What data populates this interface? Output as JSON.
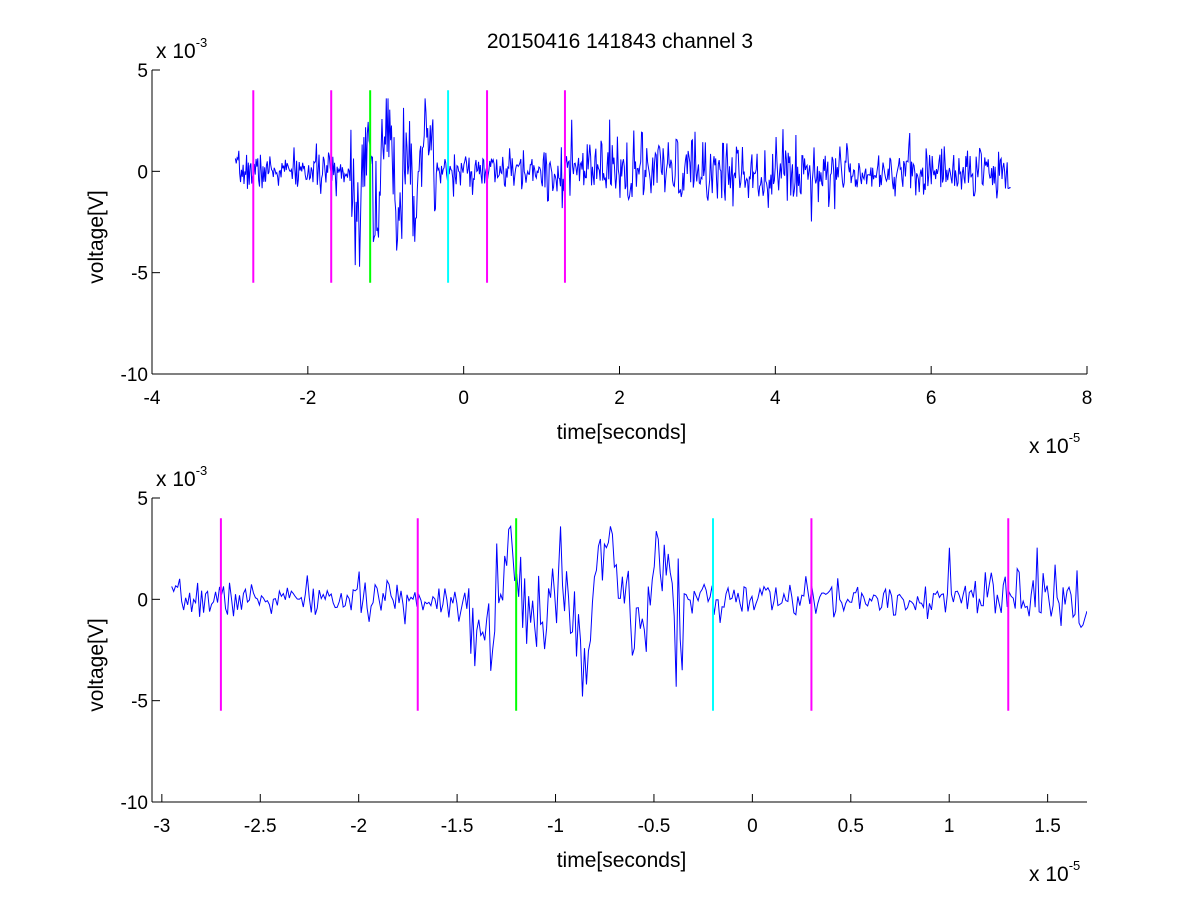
{
  "title": "20150416 141843 channel 3",
  "colors": {
    "signal": "#0000ff",
    "marker_magenta": "#ff00ff",
    "marker_green": "#00ff00",
    "marker_cyan": "#00ffff",
    "axes": "#000000",
    "background": "#ffffff"
  },
  "chart_data": [
    {
      "type": "line",
      "name": "top-plot",
      "xlabel": "time[seconds]",
      "ylabel": "voltage[V]",
      "x_exponent": {
        "base": "x 10",
        "power": "-5"
      },
      "y_exponent": {
        "base": "x 10",
        "power": "-3"
      },
      "xlim": [
        -4,
        8
      ],
      "ylim": [
        -10,
        5
      ],
      "xticks": [
        -4,
        -2,
        0,
        2,
        4,
        6,
        8
      ],
      "xtick_labels": [
        "-4",
        "-2",
        "0",
        "2",
        "4",
        "6",
        "8"
      ],
      "yticks": [
        -10,
        -5,
        0,
        5
      ],
      "ytick_labels": [
        "-10",
        "-5",
        "0",
        "5"
      ],
      "grid": false,
      "signal": {
        "x_range": [
          -2.93,
          7.02
        ],
        "num_points": 900,
        "seed": 7
      },
      "markers": [
        {
          "x": -2.7,
          "ymin": -5.5,
          "ymax": 4.0,
          "color": "magenta"
        },
        {
          "x": -1.7,
          "ymin": -5.5,
          "ymax": 4.0,
          "color": "magenta"
        },
        {
          "x": -1.2,
          "ymin": -5.5,
          "ymax": 4.0,
          "color": "green"
        },
        {
          "x": -0.2,
          "ymin": -5.5,
          "ymax": 4.0,
          "color": "cyan"
        },
        {
          "x": 0.3,
          "ymin": -5.5,
          "ymax": 4.0,
          "color": "magenta"
        },
        {
          "x": 1.3,
          "ymin": -5.5,
          "ymax": 4.0,
          "color": "magenta"
        }
      ]
    },
    {
      "type": "line",
      "name": "bottom-plot",
      "xlabel": "time[seconds]",
      "ylabel": "voltage[V]",
      "x_exponent": {
        "base": "x 10",
        "power": "-5"
      },
      "y_exponent": {
        "base": "x 10",
        "power": "-3"
      },
      "xlim": [
        -3.05,
        1.7
      ],
      "ylim": [
        -10,
        5
      ],
      "xticks": [
        -3,
        -2.5,
        -2,
        -1.5,
        -1,
        -0.5,
        0,
        0.5,
        1,
        1.5
      ],
      "xtick_labels": [
        "-3",
        "-2.5",
        "-2",
        "-1.5",
        "-1",
        "-0.5",
        "0",
        "0.5",
        "1",
        "1.5"
      ],
      "yticks": [
        -10,
        -5,
        0,
        5
      ],
      "ytick_labels": [
        "-10",
        "-5",
        "0",
        "5"
      ],
      "grid": false,
      "signal": {
        "x_range": [
          -2.95,
          1.7
        ],
        "num_points": 460,
        "seed": 7
      },
      "markers": [
        {
          "x": -2.7,
          "ymin": -5.5,
          "ymax": 4.0,
          "color": "magenta"
        },
        {
          "x": -1.7,
          "ymin": -5.5,
          "ymax": 4.0,
          "color": "magenta"
        },
        {
          "x": -1.2,
          "ymin": -5.5,
          "ymax": 4.0,
          "color": "green"
        },
        {
          "x": -0.2,
          "ymin": -5.5,
          "ymax": 4.0,
          "color": "cyan"
        },
        {
          "x": 0.3,
          "ymin": -5.5,
          "ymax": 4.0,
          "color": "magenta"
        },
        {
          "x": 1.3,
          "ymin": -5.5,
          "ymax": 4.0,
          "color": "magenta"
        }
      ]
    }
  ]
}
